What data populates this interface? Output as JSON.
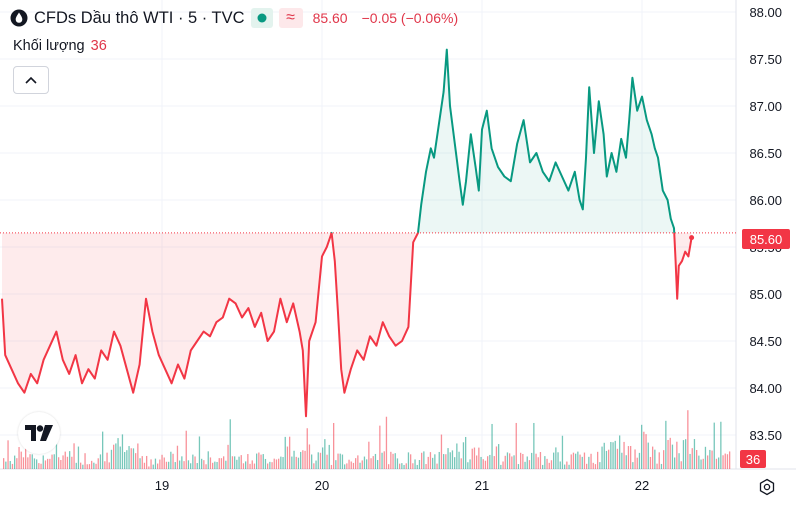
{
  "header": {
    "title": "CFDs Dầu thô WTI · 5 · TVC",
    "last_price": "85.60",
    "change": "−0.05 (−0.06%)",
    "volume_label": "Khối lượng",
    "volume_value": "36",
    "price_tag": "85.60",
    "volume_tag": "36"
  },
  "colors": {
    "up": "#089981",
    "down": "#f23645",
    "grid": "#f0f3fa",
    "text": "#131722"
  },
  "icons": [
    "drop-icon",
    "chevron-up-icon",
    "tradingview-logo-icon",
    "settings-icon"
  ],
  "chart_data": {
    "type": "area",
    "title": "CFDs Dầu thô WTI · 5 · TVC",
    "reference_price": 85.65,
    "last_price": 85.6,
    "ylim": [
      83.25,
      88.0
    ],
    "y_ticks": [
      "88.00",
      "87.50",
      "87.00",
      "86.50",
      "86.00",
      "85.50",
      "85.00",
      "84.50",
      "84.00",
      "83.50"
    ],
    "x_ticks": [
      "19",
      "20",
      "21",
      "22"
    ],
    "xlim": [
      18.0,
      22.55
    ],
    "grid": true,
    "series": [
      {
        "values": [
          [
            18.0,
            84.95
          ],
          [
            18.02,
            84.35
          ],
          [
            18.06,
            84.2
          ],
          [
            18.1,
            84.05
          ],
          [
            18.14,
            83.95
          ],
          [
            18.18,
            84.15
          ],
          [
            18.22,
            84.05
          ],
          [
            18.26,
            84.3
          ],
          [
            18.3,
            84.45
          ],
          [
            18.34,
            84.6
          ],
          [
            18.38,
            84.3
          ],
          [
            18.42,
            84.15
          ],
          [
            18.46,
            84.35
          ],
          [
            18.5,
            84.05
          ],
          [
            18.54,
            84.2
          ],
          [
            18.58,
            84.1
          ],
          [
            18.62,
            84.4
          ],
          [
            18.66,
            84.3
          ],
          [
            18.7,
            84.6
          ],
          [
            18.74,
            84.45
          ],
          [
            18.78,
            84.2
          ],
          [
            18.82,
            83.95
          ],
          [
            18.86,
            84.25
          ],
          [
            18.9,
            84.95
          ],
          [
            18.94,
            84.6
          ],
          [
            18.98,
            84.35
          ],
          [
            19.02,
            84.2
          ],
          [
            19.06,
            84.05
          ],
          [
            19.1,
            84.25
          ],
          [
            19.14,
            84.1
          ],
          [
            19.18,
            84.4
          ],
          [
            19.22,
            84.5
          ],
          [
            19.26,
            84.6
          ],
          [
            19.3,
            84.55
          ],
          [
            19.34,
            84.7
          ],
          [
            19.38,
            84.75
          ],
          [
            19.42,
            84.95
          ],
          [
            19.46,
            84.9
          ],
          [
            19.5,
            84.75
          ],
          [
            19.54,
            84.85
          ],
          [
            19.58,
            84.65
          ],
          [
            19.62,
            84.8
          ],
          [
            19.66,
            84.5
          ],
          [
            19.7,
            84.6
          ],
          [
            19.74,
            84.95
          ],
          [
            19.78,
            84.7
          ],
          [
            19.82,
            84.9
          ],
          [
            19.86,
            84.6
          ],
          [
            19.88,
            84.4
          ],
          [
            19.9,
            83.7
          ],
          [
            19.92,
            84.5
          ],
          [
            19.96,
            84.7
          ],
          [
            20.0,
            85.4
          ],
          [
            20.03,
            85.5
          ],
          [
            20.06,
            85.65
          ],
          [
            20.08,
            85.35
          ],
          [
            20.1,
            84.8
          ],
          [
            20.12,
            84.2
          ],
          [
            20.14,
            83.95
          ],
          [
            20.18,
            84.2
          ],
          [
            20.22,
            84.4
          ],
          [
            20.26,
            84.3
          ],
          [
            20.3,
            84.55
          ],
          [
            20.34,
            84.45
          ],
          [
            20.38,
            84.7
          ],
          [
            20.42,
            84.55
          ],
          [
            20.46,
            84.45
          ],
          [
            20.5,
            84.5
          ],
          [
            20.54,
            84.65
          ],
          [
            20.57,
            85.55
          ],
          [
            20.6,
            85.65
          ],
          [
            20.62,
            85.95
          ],
          [
            20.65,
            86.3
          ],
          [
            20.68,
            86.55
          ],
          [
            20.7,
            86.45
          ],
          [
            20.73,
            86.8
          ],
          [
            20.76,
            87.15
          ],
          [
            20.78,
            87.6
          ],
          [
            20.8,
            87.0
          ],
          [
            20.83,
            86.6
          ],
          [
            20.86,
            86.2
          ],
          [
            20.88,
            85.95
          ],
          [
            20.9,
            86.2
          ],
          [
            20.93,
            86.7
          ],
          [
            20.96,
            86.35
          ],
          [
            20.98,
            86.1
          ],
          [
            21.0,
            86.75
          ],
          [
            21.03,
            86.95
          ],
          [
            21.06,
            86.55
          ],
          [
            21.1,
            86.35
          ],
          [
            21.14,
            86.25
          ],
          [
            21.18,
            86.2
          ],
          [
            21.22,
            86.6
          ],
          [
            21.26,
            86.85
          ],
          [
            21.3,
            86.4
          ],
          [
            21.34,
            86.5
          ],
          [
            21.38,
            86.3
          ],
          [
            21.42,
            86.2
          ],
          [
            21.46,
            86.4
          ],
          [
            21.5,
            86.25
          ],
          [
            21.54,
            86.1
          ],
          [
            21.58,
            86.3
          ],
          [
            21.61,
            86.0
          ],
          [
            21.63,
            85.9
          ],
          [
            21.65,
            86.45
          ],
          [
            21.67,
            87.2
          ],
          [
            21.7,
            86.5
          ],
          [
            21.73,
            87.05
          ],
          [
            21.76,
            86.7
          ],
          [
            21.78,
            86.25
          ],
          [
            21.81,
            86.5
          ],
          [
            21.84,
            86.3
          ],
          [
            21.87,
            86.65
          ],
          [
            21.9,
            86.45
          ],
          [
            21.92,
            86.85
          ],
          [
            21.94,
            87.3
          ],
          [
            21.97,
            86.95
          ],
          [
            22.0,
            87.1
          ],
          [
            22.03,
            86.85
          ],
          [
            22.06,
            86.7
          ],
          [
            22.08,
            86.55
          ],
          [
            22.1,
            86.45
          ],
          [
            22.13,
            86.1
          ],
          [
            22.16,
            86.0
          ],
          [
            22.18,
            85.8
          ],
          [
            22.2,
            85.7
          ],
          [
            22.21,
            85.35
          ],
          [
            22.22,
            84.95
          ],
          [
            22.23,
            85.3
          ],
          [
            22.25,
            85.35
          ],
          [
            22.27,
            85.45
          ],
          [
            22.29,
            85.4
          ],
          [
            22.31,
            85.6
          ]
        ]
      }
    ]
  }
}
